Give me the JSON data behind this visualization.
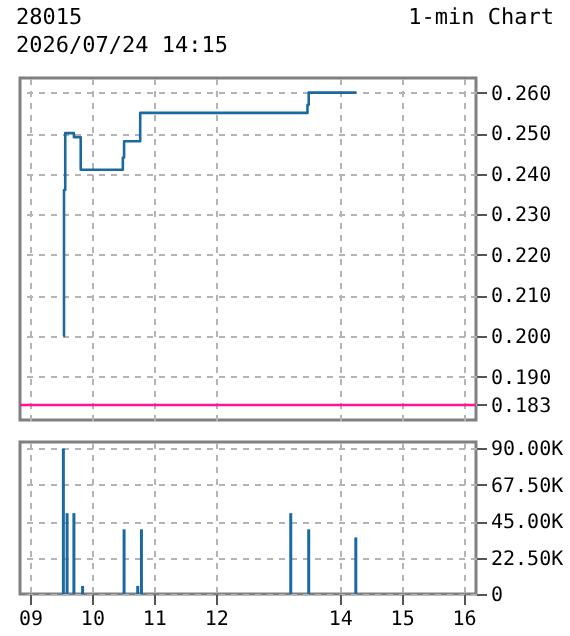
{
  "chart_data": [
    {
      "type": "step",
      "title": "28015",
      "subtitle": "2026/07/24 14:15",
      "annotations": [
        "1-min Chart"
      ],
      "x": [
        9.54,
        9.55,
        9.57,
        9.71,
        9.82,
        10.5,
        10.52,
        10.78,
        13.48,
        13.5,
        14.27
      ],
      "values": [
        0.2,
        0.236,
        0.25,
        0.249,
        0.241,
        0.244,
        0.248,
        0.255,
        0.257,
        0.26,
        0.26
      ],
      "color": "#1a6aa0",
      "xlim": [
        8.84,
        16.2
      ],
      "xticks": [
        9,
        10,
        11,
        12,
        14,
        15,
        16
      ],
      "ylim": [
        0.1793,
        0.2636
      ],
      "yticks": [
        0.183,
        {
          "value": 0.19,
          "label": "0.190"
        },
        {
          "value": 0.2,
          "label": "0.200"
        },
        {
          "value": 0.21,
          "label": "0.210"
        },
        {
          "value": 0.22,
          "label": "0.220"
        },
        {
          "value": 0.23,
          "label": "0.230"
        },
        {
          "value": 0.24,
          "label": "0.240"
        },
        {
          "value": 0.25,
          "label": "0.250"
        },
        {
          "value": 0.26,
          "label": "0.260"
        }
      ],
      "ref_lines": [
        {
          "axis": "y",
          "value": 0.183,
          "color": "#ff1493"
        }
      ],
      "grid": true,
      "tick_labels": "y"
    },
    {
      "type": "bar",
      "x": [
        9.54,
        9.6,
        9.71,
        9.85,
        10.52,
        10.74,
        10.8,
        13.21,
        13.5,
        14.26
      ],
      "values": [
        90000,
        50000,
        50000,
        5000,
        40000,
        5000,
        40000,
        50000,
        40000,
        35000
      ],
      "color": "#1a6aa0",
      "xlim": [
        8.84,
        16.2
      ],
      "xticks": [
        {
          "value": 9,
          "label": "09"
        },
        10,
        11,
        12,
        14,
        15,
        16
      ],
      "ylim": [
        0,
        94000
      ],
      "yticks": [
        0,
        {
          "value": 22500,
          "label": "22.50K"
        },
        {
          "value": 45000,
          "label": "45.00K"
        },
        {
          "value": 67500,
          "label": "67.50K"
        },
        {
          "value": 90000,
          "label": "90.00K"
        }
      ],
      "grid": true
    }
  ]
}
